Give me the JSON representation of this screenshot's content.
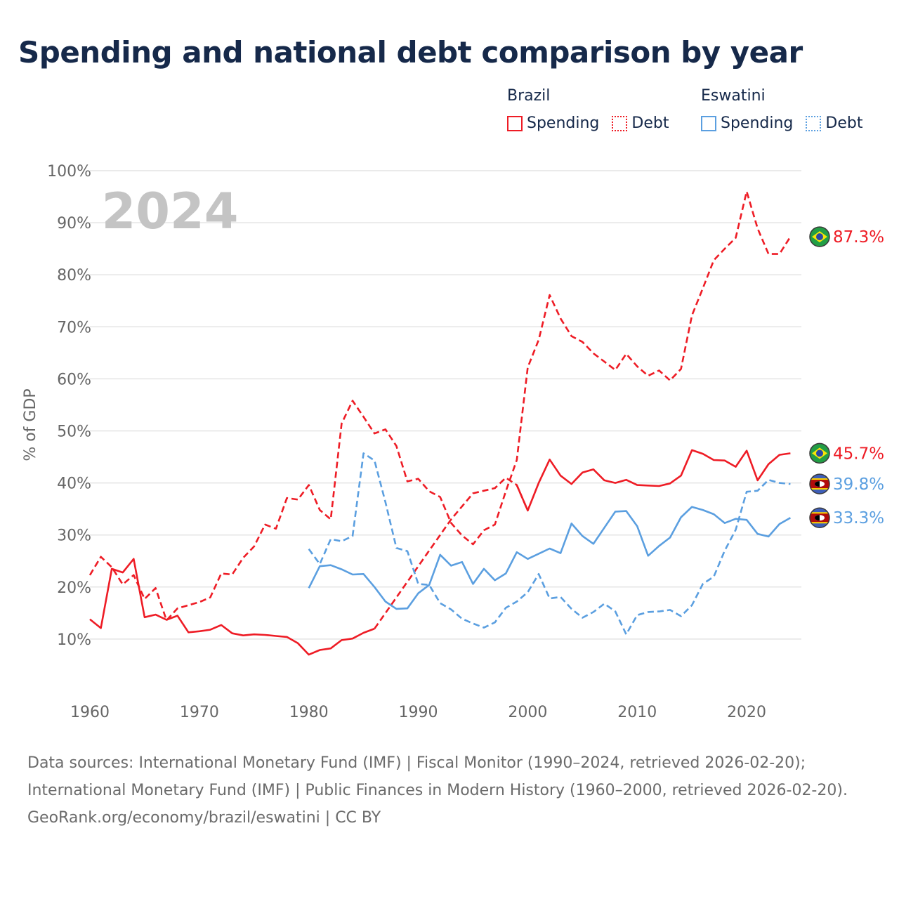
{
  "colors": {
    "title": "#16294a",
    "brazil": "#ee1c25",
    "eswatini": "#5b9fe0",
    "grid": "#e4e4e4",
    "axis_text": "#666666",
    "year_watermark": "#c4c4c4"
  },
  "title": "Spending and national debt comparison by year",
  "legend": {
    "groups": [
      {
        "country": "Brazil",
        "color": "#ee1c25",
        "items": [
          {
            "label": "Spending",
            "style": "solid"
          },
          {
            "label": "Debt",
            "style": "dotted"
          }
        ]
      },
      {
        "country": "Eswatini",
        "color": "#5b9fe0",
        "items": [
          {
            "label": "Spending",
            "style": "solid"
          },
          {
            "label": "Debt",
            "style": "dotted"
          }
        ]
      }
    ]
  },
  "year_watermark": "2024",
  "footer": {
    "sources": "Data sources: International Monetary Fund (IMF) | Fiscal Monitor (1990–2024, retrieved 2026-02-20); International Monetary Fund (IMF) | Public Finances in Modern History (1960–2000, retrieved 2026-02-20).",
    "credit": "GeoRank.org/economy/brazil/eswatini | CC BY"
  },
  "chart_data": {
    "type": "line",
    "title": "Spending and national debt comparison by year",
    "xlabel": "",
    "ylabel": "% of GDP",
    "xlim": [
      1960,
      2025
    ],
    "ylim": [
      0,
      100
    ],
    "x_ticks": [
      1960,
      1970,
      1980,
      1990,
      2000,
      2010,
      2020
    ],
    "y_ticks": [
      10,
      20,
      30,
      40,
      50,
      60,
      70,
      80,
      90,
      100
    ],
    "y_tick_labels": [
      "10%",
      "20%",
      "30%",
      "40%",
      "50%",
      "60%",
      "70%",
      "80%",
      "90%",
      "100%"
    ],
    "grid": true,
    "series": [
      {
        "name": "Brazil Spending",
        "country": "Brazil",
        "kind": "spending",
        "color": "#ee1c25",
        "dash": "solid",
        "end_label": "45.7%",
        "flag": "brazil",
        "segments": [
          {
            "x": [
              1960,
              1961,
              1962,
              1963,
              1964,
              1965,
              1966,
              1967,
              1968,
              1969,
              1970,
              1971,
              1972,
              1973,
              1974,
              1975,
              1976,
              1977,
              1978,
              1979,
              1980,
              1981,
              1982,
              1983,
              1984,
              1985,
              1986,
              1987,
              1988,
              1989,
              1990,
              1991,
              1992,
              1993,
              1994,
              1995,
              1996,
              1997,
              1998,
              1999,
              2000,
              2001,
              2002,
              2003,
              2004,
              2005,
              2006,
              2007,
              2008,
              2009,
              2010,
              2011,
              2012,
              2013,
              2014,
              2015,
              2016,
              2017,
              2018,
              2019,
              2020,
              2021,
              2022,
              2023,
              2024
            ],
            "y": [
              13.8,
              12.1,
              23.5,
              22.8,
              25.4,
              14.2,
              14.7,
              13.7,
              14.5,
              11.3,
              11.5,
              11.8,
              12.7,
              11.1,
              10.7,
              10.9,
              10.8,
              10.6,
              10.4,
              9.2,
              7.0,
              7.9,
              8.2,
              9.8,
              10.1,
              11.2,
              12.0,
              null,
              null,
              null,
              null,
              null,
              null,
              null,
              null,
              null,
              null,
              null,
              null,
              null,
              null,
              null,
              null,
              null,
              null,
              null,
              null,
              null,
              null,
              null,
              null,
              null,
              null,
              null,
              null,
              null,
              null,
              null,
              null,
              null,
              null,
              null,
              null,
              null,
              null
            ],
            "segment_style": "solid"
          },
          {
            "x": [
              1986,
              1987,
              1988,
              1989,
              1990,
              1991,
              1992,
              1993,
              1994,
              1995,
              1996,
              1997,
              1998,
              1999,
              2000
            ],
            "y": [
              12.0,
              15.0,
              18.0,
              21.0,
              24.0,
              27.0,
              30.0,
              33.0,
              35.5,
              38.0,
              38.5,
              39.0,
              41.0,
              39.6,
              34.7
            ],
            "segment_style": "dashed"
          },
          {
            "x": [
              1999,
              2000,
              2001,
              2002,
              2003,
              2004,
              2005,
              2006,
              2007,
              2008,
              2009,
              2010,
              2011,
              2012,
              2013,
              2014,
              2015,
              2016,
              2017,
              2018,
              2019,
              2020,
              2021,
              2022,
              2023,
              2024
            ],
            "y": [
              39.6,
              34.7,
              40.0,
              44.5,
              41.4,
              39.8,
              42.0,
              42.6,
              40.5,
              40.0,
              40.6,
              39.6,
              39.5,
              39.4,
              39.9,
              41.4,
              46.3,
              45.6,
              44.4,
              44.3,
              43.1,
              46.2,
              40.5,
              43.6,
              45.4,
              45.7
            ],
            "segment_style": "solid"
          }
        ]
      },
      {
        "name": "Brazil Debt",
        "country": "Brazil",
        "kind": "debt",
        "color": "#ee1c25",
        "dash": "dashed",
        "end_label": "87.3%",
        "flag": "brazil",
        "x": [
          1960,
          1961,
          1962,
          1963,
          1964,
          1965,
          1966,
          1967,
          1968,
          1969,
          1970,
          1971,
          1972,
          1973,
          1974,
          1975,
          1976,
          1977,
          1978,
          1979,
          1980,
          1981,
          1982,
          1983,
          1984,
          1985,
          1986,
          1987,
          1988,
          1989,
          1990,
          1991,
          1992,
          1993,
          1994,
          1995,
          1996,
          1997,
          1998,
          1999,
          2000,
          2001,
          2002,
          2003,
          2004,
          2005,
          2006,
          2007,
          2008,
          2009,
          2010,
          2011,
          2012,
          2013,
          2014,
          2015,
          2016,
          2017,
          2018,
          2019,
          2020,
          2021,
          2022,
          2023,
          2024
        ],
        "y": [
          22.3,
          25.8,
          23.8,
          20.5,
          22.3,
          17.7,
          19.8,
          13.6,
          15.9,
          16.5,
          17.1,
          18.0,
          22.6,
          22.4,
          25.6,
          27.8,
          32.0,
          31.2,
          37.1,
          36.8,
          39.6,
          34.8,
          33.0,
          51.4,
          55.8,
          52.7,
          49.5,
          50.3,
          47.1,
          40.3,
          40.8,
          38.4,
          37.3,
          32.3,
          29.9,
          28.2,
          30.9,
          32.0,
          38.4,
          44.4,
          62.2,
          67.5,
          76.1,
          71.6,
          68.2,
          67.1,
          64.9,
          63.3,
          61.7,
          64.8,
          62.4,
          60.6,
          61.6,
          59.7,
          61.9,
          72.2,
          77.4,
          82.8,
          85.0,
          87.1,
          96.0,
          88.9,
          84.0,
          84.0,
          87.3
        ]
      },
      {
        "name": "Eswatini Spending",
        "country": "Eswatini",
        "kind": "spending",
        "color": "#5b9fe0",
        "dash": "solid",
        "end_label": "33.3%",
        "flag": "eswatini",
        "x": [
          1980,
          1981,
          1982,
          1983,
          1984,
          1985,
          1986,
          1987,
          1988,
          1989,
          1990,
          1991,
          1992,
          1993,
          1994,
          1995,
          1996,
          1997,
          1998,
          1999,
          2000,
          2001,
          2002,
          2003,
          2004,
          2005,
          2006,
          2007,
          2008,
          2009,
          2010,
          2011,
          2012,
          2013,
          2014,
          2015,
          2016,
          2017,
          2018,
          2019,
          2020,
          2021,
          2022,
          2023,
          2024
        ],
        "y": [
          19.8,
          24.0,
          24.2,
          23.4,
          22.4,
          22.5,
          20.0,
          17.2,
          15.8,
          15.9,
          18.8,
          20.4,
          26.2,
          24.1,
          24.8,
          20.6,
          23.5,
          21.3,
          22.6,
          26.7,
          25.4,
          26.4,
          27.4,
          26.5,
          32.2,
          29.8,
          28.3,
          31.4,
          34.5,
          34.6,
          31.7,
          26.0,
          27.9,
          29.5,
          33.4,
          35.4,
          34.8,
          34.0,
          32.3,
          33.1,
          32.9,
          30.2,
          29.7,
          32.1,
          33.3
        ]
      },
      {
        "name": "Eswatini Debt",
        "country": "Eswatini",
        "kind": "debt",
        "color": "#5b9fe0",
        "dash": "dashed",
        "end_label": "39.8%",
        "flag": "eswatini",
        "x": [
          1980,
          1981,
          1982,
          1983,
          1984,
          1985,
          1986,
          1987,
          1988,
          1989,
          1990,
          1991,
          1992,
          1993,
          1994,
          1995,
          1996,
          1997,
          1998,
          1999,
          2000,
          2001,
          2002,
          2003,
          2004,
          2005,
          2006,
          2007,
          2008,
          2009,
          2010,
          2011,
          2012,
          2013,
          2014,
          2015,
          2016,
          2017,
          2018,
          2019,
          2020,
          2021,
          2022,
          2023,
          2024
        ],
        "y": [
          27.3,
          24.4,
          29.2,
          28.8,
          29.8,
          45.7,
          44.3,
          36.3,
          27.5,
          26.9,
          20.6,
          20.4,
          16.9,
          15.7,
          13.9,
          13.0,
          12.2,
          13.2,
          16.0,
          17.2,
          19.0,
          22.5,
          17.8,
          18.1,
          15.8,
          14.1,
          15.2,
          16.8,
          15.3,
          10.9,
          14.6,
          15.2,
          15.3,
          15.6,
          14.4,
          16.5,
          20.6,
          22.0,
          27.0,
          31.0,
          38.3,
          38.5,
          40.6,
          40.0,
          39.8
        ]
      }
    ]
  }
}
